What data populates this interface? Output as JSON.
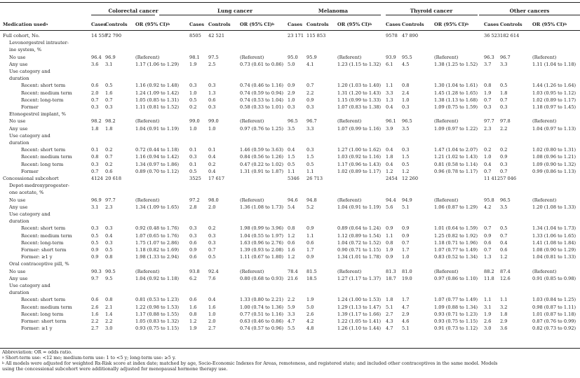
{
  "header": {
    "medication_label": "Medication used",
    "groups": [
      "Colorectal cancer",
      "Lung cancer",
      "Melanoma",
      "Thyroid cancer",
      "Other cancers"
    ],
    "cases": "Cases",
    "controls": "Controls",
    "or_label": "OR (95% CI)"
  },
  "rows": [
    {
      "label": "Full cohort, No.",
      "indent": 0,
      "vals": [
        [
          "14 558",
          "72 790",
          ""
        ],
        [
          "8505",
          "42 521",
          ""
        ],
        [
          "23 171",
          "115 853",
          ""
        ],
        [
          "9578",
          "47 890",
          ""
        ],
        [
          "36 523",
          "182 614",
          ""
        ]
      ]
    },
    {
      "label": "Levonorgestrel intrauter-",
      "indent": 1,
      "vals": null
    },
    {
      "label": "ine system, %",
      "indent": 1,
      "vals": null
    },
    {
      "label": "No use",
      "indent": 1,
      "vals": [
        [
          "96.4",
          "96.9",
          "(Referent)"
        ],
        [
          "98.1",
          "97.5",
          "(Referent)"
        ],
        [
          "95.0",
          "95.9",
          "(Referent)"
        ],
        [
          "93.9",
          "95.5",
          "(Referent)"
        ],
        [
          "96.3",
          "96.7",
          "(Referent)"
        ]
      ]
    },
    {
      "label": "Any use",
      "indent": 1,
      "vals": [
        [
          "3.6",
          "3.1",
          "1.17 (1.06 to 1.29)"
        ],
        [
          "1.9",
          "2.5",
          "0.73 (0.61 to 0.86)"
        ],
        [
          "5.0",
          "4.1",
          "1.23 (1.15 to 1.32)"
        ],
        [
          "6.1",
          "4.5",
          "1.38 (1.25 to 1.52)"
        ],
        [
          "3.7",
          "3.3",
          "1.11 (1.04 to 1.18)"
        ]
      ]
    },
    {
      "label": "Use category and",
      "indent": 1,
      "vals": null
    },
    {
      "label": "duration",
      "indent": 1,
      "vals": null
    },
    {
      "label": "Recent: short term",
      "indent": 2,
      "vals": [
        [
          "0.6",
          "0.5",
          "1.16 (0.92 to 1.48)"
        ],
        [
          "0.3",
          "0.3",
          "0.74 (0.46 to 1.16)"
        ],
        [
          "0.9",
          "0.7",
          "1.20 (1.03 to 1.40)"
        ],
        [
          "1.1",
          "0.8",
          "1.30 (1.04 to 1.61)"
        ],
        [
          "0.8",
          "0.5",
          "1.44 (1.26 to 1.64)"
        ]
      ]
    },
    {
      "label": "Recent: medium term",
      "indent": 2,
      "vals": [
        [
          "2.0",
          "1.6",
          "1.24 (1.09 to 1.42)"
        ],
        [
          "1.0",
          "1.3",
          "0.74 (0.59 to 0.94)"
        ],
        [
          "2.9",
          "2.2",
          "1.31 (1.20 to 1.43)"
        ],
        [
          "3.3",
          "2.4",
          "1.45 (1.28 to 1.65)"
        ],
        [
          "1.9",
          "1.8",
          "1.03 (0.95 to 1.12)"
        ]
      ]
    },
    {
      "label": "Recent: long-term",
      "indent": 2,
      "vals": [
        [
          "0.7",
          "0.7",
          "1.05 (0.85 to 1.31)"
        ],
        [
          "0.5",
          "0.6",
          "0.74 (0.53 to 1.04)"
        ],
        [
          "1.0",
          "0.9",
          "1.15 (0.99 to 1.33)"
        ],
        [
          "1.3",
          "1.0",
          "1.38 (1.13 to 1.68)"
        ],
        [
          "0.7",
          "0.7",
          "1.02 (0.89 to 1.17)"
        ]
      ]
    },
    {
      "label": "Former",
      "indent": 2,
      "vals": [
        [
          "0.3",
          "0.3",
          "1.11 (0.81 to 1.52)"
        ],
        [
          "0.2",
          "0.3",
          "0.58 (0.33 to 1.01)"
        ],
        [
          "0.3",
          "0.3",
          "1.07 (0.83 to 1.38)"
        ],
        [
          "0.4",
          "0.3",
          "1.09 (0.75 to 1.59)"
        ],
        [
          "0.3",
          "0.3",
          "1.18 (0.97 to 1.45)"
        ]
      ]
    },
    {
      "label": "Etonogestrel implant, %",
      "indent": 1,
      "vals": null
    },
    {
      "label": "No use",
      "indent": 1,
      "vals": [
        [
          "98.2",
          "98.2",
          "(Referent)"
        ],
        [
          "99.0",
          "99.0",
          "(Referent)"
        ],
        [
          "96.5",
          "96.7",
          "(Referent)"
        ],
        [
          "96.1",
          "96.5",
          "(Referent)"
        ],
        [
          "97.7",
          "97.8",
          "(Referent)"
        ]
      ]
    },
    {
      "label": "Any use",
      "indent": 1,
      "vals": [
        [
          "1.8",
          "1.8",
          "1.04 (0.91 to 1.19)"
        ],
        [
          "1.0",
          "1.0",
          "0.97 (0.76 to 1.25)"
        ],
        [
          "3.5",
          "3.3",
          "1.07 (0.99 to 1.16)"
        ],
        [
          "3.9",
          "3.5",
          "1.09 (0.97 to 1.22)"
        ],
        [
          "2.3",
          "2.2",
          "1.04 (0.97 to 1.13)"
        ]
      ]
    },
    {
      "label": "Use category and",
      "indent": 1,
      "vals": null
    },
    {
      "label": "duration",
      "indent": 1,
      "vals": null
    },
    {
      "label": "Recent: short term",
      "indent": 2,
      "vals": [
        [
          "0.1",
          "0.2",
          "0.72 (0.44 to 1.18)"
        ],
        [
          "0.1",
          "0.1",
          "1.46 (0.59 to 3.63)"
        ],
        [
          "0.4",
          "0.3",
          "1.27 (1.00 to 1.62)"
        ],
        [
          "0.4",
          "0.3",
          "1.47 (1.04 to 2.07)"
        ],
        [
          "0.2",
          "0.2",
          "1.02 (0.80 to 1.31)"
        ]
      ]
    },
    {
      "label": "Recent: medium term",
      "indent": 2,
      "vals": [
        [
          "0.8",
          "0.7",
          "1.16 (0.94 to 1.42)"
        ],
        [
          "0.3",
          "0.4",
          "0.84 (0.56 to 1.26)"
        ],
        [
          "1.5",
          "1.5",
          "1.03 (0.92 to 1.16)"
        ],
        [
          "1.8",
          "1.5",
          "1.21 (1.02 to 1.43)"
        ],
        [
          "1.0",
          "0.9",
          "1.08 (0.96 to 1.21)"
        ]
      ]
    },
    {
      "label": "Recent: long term",
      "indent": 2,
      "vals": [
        [
          "0.3",
          "0.2",
          "1.34 (0.97 to 1.86)"
        ],
        [
          "0.1",
          "0.2",
          "0.47 (0.22 to 1.02)"
        ],
        [
          "0.5",
          "0.5",
          "1.17 (0.96 to 1.43)"
        ],
        [
          "0.4",
          "0.5",
          "0.81 (0.58 to 1.14)"
        ],
        [
          "0.4",
          "0.3",
          "1.09 (0.90 to 1.32)"
        ]
      ]
    },
    {
      "label": "Former",
      "indent": 2,
      "vals": [
        [
          "0.7",
          "0.6",
          "0.89 (0.70 to 1.12)"
        ],
        [
          "0.5",
          "0.4",
          "1.31 (0.91 to 1.87)"
        ],
        [
          "1.1",
          "1.1",
          "1.02 (0.89 to 1.17)"
        ],
        [
          "1.2",
          "1.2",
          "0.96 (0.78 to 1.17)"
        ],
        [
          "0.7",
          "0.7",
          "0.99 (0.86 to 1.13)"
        ]
      ]
    },
    {
      "label": "Concessional subcohort",
      "indent": 0,
      "vals": [
        [
          "4124",
          "20 618",
          ""
        ],
        [
          "3525",
          "17 617",
          ""
        ],
        [
          "5346",
          "26 713",
          ""
        ],
        [
          "2454",
          "12 260",
          ""
        ],
        [
          "11 412",
          "57 046",
          ""
        ]
      ]
    },
    {
      "label": "Depot-medroxyprogester-",
      "indent": 1,
      "vals": null
    },
    {
      "label": "one acetate, %",
      "indent": 1,
      "vals": null
    },
    {
      "label": "No use",
      "indent": 1,
      "vals": [
        [
          "96.9",
          "97.7",
          "(Referent)"
        ],
        [
          "97.2",
          "98.0",
          "(Referent)"
        ],
        [
          "94.6",
          "94.8",
          "(Referent)"
        ],
        [
          "94.4",
          "94.9",
          "(Referent)"
        ],
        [
          "95.8",
          "96.5",
          "(Referent)"
        ]
      ]
    },
    {
      "label": "Any use",
      "indent": 1,
      "vals": [
        [
          "3.1",
          "2.3",
          "1.34 (1.09 to 1.65)"
        ],
        [
          "2.8",
          "2.0",
          "1.36 (1.08 to 1.73)"
        ],
        [
          "5.4",
          "5.2",
          "1.04 (0.91 to 1.19)"
        ],
        [
          "5.6",
          "5.1",
          "1.06 (0.87 to 1.29)"
        ],
        [
          "4.2",
          "3.5",
          "1.20 (1.08 to 1.33)"
        ]
      ]
    },
    {
      "label": "Use category and",
      "indent": 1,
      "vals": null
    },
    {
      "label": "duration",
      "indent": 1,
      "vals": null
    },
    {
      "label": "Recent: short term",
      "indent": 2,
      "vals": [
        [
          "0.3",
          "0.3",
          "0.92 (0.48 to 1.76)"
        ],
        [
          "0.3",
          "0.2",
          "1.98 (0.99 to 3.96)"
        ],
        [
          "0.8",
          "0.9",
          "0.89 (0.64 to 1.24)"
        ],
        [
          "0.9",
          "0.9",
          "1.01 (0.64 to 1.59)"
        ],
        [
          "0.7",
          "0.5",
          "1.34 (1.04 to 1.73)"
        ]
      ]
    },
    {
      "label": "Recent: medium term",
      "indent": 2,
      "vals": [
        [
          "0.5",
          "0.4",
          "1.07 (0.65 to 1.76)"
        ],
        [
          "0.3",
          "0.3",
          "1.04 (0.55 to 1.97)"
        ],
        [
          "1.2",
          "1.1",
          "1.12 (0.89 to 1.54)"
        ],
        [
          "1.1",
          "0.9",
          "1.25 (0.82 to 1.92)"
        ],
        [
          "0.9",
          "0.7",
          "1.33 (1.06 to 1.65)"
        ]
      ]
    },
    {
      "label": "Recent: long-term",
      "indent": 2,
      "vals": [
        [
          "0.5",
          "0.3",
          "1.75 (1.07 to 2.86)"
        ],
        [
          "0.6",
          "0.3",
          "1.63 (0.96 to 2.76)"
        ],
        [
          "0.6",
          "0.6",
          "1.04 (0.72 to 1.52)"
        ],
        [
          "0.8",
          "0.7",
          "1.18 (0.71 to 1.96)"
        ],
        [
          "0.6",
          "0.4",
          "1.41 (1.08 to 1.84)"
        ]
      ]
    },
    {
      "label": "Former: short term",
      "indent": 2,
      "vals": [
        [
          "0.9",
          "0.5",
          "1.18 (0.82 to 1.69)"
        ],
        [
          "0.9",
          "0.7",
          "1.39 (0.93 to 2.08)"
        ],
        [
          "1.6",
          "1.7",
          "0.90 (0.71 to 1.15)"
        ],
        [
          "1.9",
          "1.7",
          "1.07 (0.77 to 1.49)"
        ],
        [
          "0.7",
          "0.6",
          "1.08 (0.90 to 1.29)"
        ]
      ]
    },
    {
      "label": "Former: ≥1 y",
      "indent": 2,
      "vals": [
        [
          "0.9",
          "0.8",
          "1.98 (1.33 to 2.94)"
        ],
        [
          "0.6",
          "0.5",
          "1.11 (0.67 to 1.80)"
        ],
        [
          "1.2",
          "0.9",
          "1.34 (1.01 to 1.78)"
        ],
        [
          "0.9",
          "1.0",
          "0.83 (0.52 to 1.34)"
        ],
        [
          "1.3",
          "1.2",
          "1.04 (0.81 to 1.33)"
        ]
      ]
    },
    {
      "label": "Oral contraceptive pill, %",
      "indent": 1,
      "vals": null
    },
    {
      "label": "No use",
      "indent": 1,
      "vals": [
        [
          "90.3",
          "90.5",
          "(Referent)"
        ],
        [
          "93.8",
          "92.4",
          "(Referent)"
        ],
        [
          "78.4",
          "81.5",
          "(Referent)"
        ],
        [
          "81.3",
          "81.0",
          "(Referent)"
        ],
        [
          "88.2",
          "87.4",
          "(Referent)"
        ]
      ]
    },
    {
      "label": "Any use",
      "indent": 1,
      "vals": [
        [
          "9.7",
          "9.5",
          "1.04 (0.92 to 1.18)"
        ],
        [
          "6.2",
          "7.6",
          "0.80 (0.68 to 0.93)"
        ],
        [
          "21.6",
          "18.5",
          "1.27 (1.17 to 1.37)"
        ],
        [
          "18.7",
          "19.0",
          "0.97 (0.86 to 1.10)"
        ],
        [
          "11.8",
          "12.6",
          "0.91 (0.85 to 0.98)"
        ]
      ]
    },
    {
      "label": "Use category and",
      "indent": 1,
      "vals": null
    },
    {
      "label": "duration",
      "indent": 1,
      "vals": null
    },
    {
      "label": "Recent: short term",
      "indent": 2,
      "vals": [
        [
          "0.6",
          "0.8",
          "0.81 (0.53 to 1.23)"
        ],
        [
          "0.6",
          "0.4",
          "1.33 (0.80 to 2.21)"
        ],
        [
          "2.2",
          "1.9",
          "1.24 (1.00 to 1.53)"
        ],
        [
          "1.8",
          "1.7",
          "1.07 (0.77 to 1.49)"
        ],
        [
          "1.1",
          "1.1",
          "1.03 (0.84 to 1.25)"
        ]
      ]
    },
    {
      "label": "Recent: medium term",
      "indent": 2,
      "vals": [
        [
          "2.6",
          "2.1",
          "1.22 (0.98 to 1.53)"
        ],
        [
          "1.6",
          "1.6",
          "1.00 (0.74 to 1.36)"
        ],
        [
          "5.9",
          "5.0",
          "1.29 (1.13 to 1.47)"
        ],
        [
          "5.1",
          "4.7",
          "1.09 (0.88 to 1.34)"
        ],
        [
          "3.1",
          "3.2",
          "0.98 (0.87 to 1.11)"
        ]
      ]
    },
    {
      "label": "Recent: long term",
      "indent": 2,
      "vals": [
        [
          "1.6",
          "1.4",
          "1.17 (0.88 to 1.55)"
        ],
        [
          "0.8",
          "1.0",
          "0.77 (0.51 to 1.16)"
        ],
        [
          "3.3",
          "2.6",
          "1.39 (1.17 to 1.66)"
        ],
        [
          "2.7",
          "2.9",
          "0.93 (0.71 to 1.23)"
        ],
        [
          "1.9",
          "1.8",
          "1.01 (0.87 to 1.18)"
        ]
      ]
    },
    {
      "label": "Former: short term",
      "indent": 2,
      "vals": [
        [
          "2.2",
          "2.2",
          "1.05 (0.83 to 1.32)"
        ],
        [
          "1.2",
          "2.0",
          "0.63 (0.46 to 0.86)"
        ],
        [
          "4.7",
          "4.2",
          "1.22 (1.05 to 1.41)"
        ],
        [
          "4.3",
          "4.6",
          "0.93 (0.75 to 1.15)"
        ],
        [
          "2.6",
          "2.9",
          "0.87 (0.76 to 0.99)"
        ]
      ]
    },
    {
      "label": "Former: ≥1 y",
      "indent": 2,
      "vals": [
        [
          "2.7",
          "3.0",
          "0.93 (0.75 to 1.15)"
        ],
        [
          "1.9",
          "2.7",
          "0.74 (0.57 to 0.96)"
        ],
        [
          "5.5",
          "4.8",
          "1.26 (1.10 to 1.44)"
        ],
        [
          "4.7",
          "5.1",
          "0.91 (0.73 to 1.12)"
        ],
        [
          "3.0",
          "3.6",
          "0.82 (0.73 to 0.92)"
        ]
      ]
    }
  ],
  "footnotes": {
    "abbrev": "Abbreviation: OR = odds ratio.",
    "a": "Short-term use: <12 mo; medium-term use: 1 to <5 y; long-term use: ≥5 y.",
    "b": "All models were adjusted for weighted Rx-Risk score at index date; matched by age, Socio-Economic Indexes for Areas, remoteness, and registered state; and included other contraceptives in the same model. Models",
    "c": "using the concessional subcohort were additionally adjusted for menopausal hormone therapy use."
  }
}
